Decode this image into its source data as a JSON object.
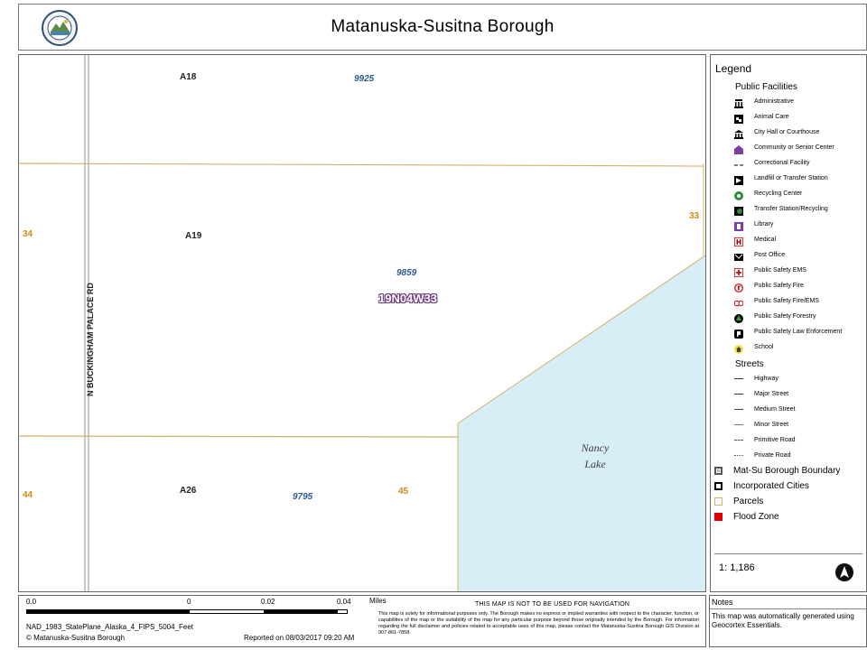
{
  "header": {
    "title": "Matanuska-Susitna Borough",
    "seal_icon": "borough-seal-icon"
  },
  "map": {
    "parcels": {
      "a18": "A18",
      "a19": "A19",
      "a26": "A26"
    },
    "parcel_numbers": {
      "p9925": "9925",
      "p9859": "9859",
      "p9795": "9795"
    },
    "sections": {
      "s34": "34",
      "s33": "33",
      "s44": "44",
      "s45": "45"
    },
    "township": "19N04W33",
    "road_label": "N BUCKINGHAM PALACE RD",
    "lake_label": [
      "Nancy",
      "Lake"
    ],
    "colors": {
      "water": "#d8eef7",
      "parcel_line": "#d2b16c",
      "road": "#b5b5b5",
      "township": "#6a3d7a"
    }
  },
  "legend": {
    "title": "Legend",
    "public_facilities": {
      "heading": "Public Facilities",
      "items": [
        {
          "label": "Administrative",
          "icon": "administrative-icon"
        },
        {
          "label": "Animal Care",
          "icon": "animal-care-icon"
        },
        {
          "label": "City Hall or Courthouse",
          "icon": "courthouse-icon"
        },
        {
          "label": "Community or Senior Center",
          "icon": "community-center-icon"
        },
        {
          "label": "Correctional Facility",
          "icon": "correctional-facility-icon"
        },
        {
          "label": "Landfill or Transfer Station",
          "icon": "landfill-icon"
        },
        {
          "label": "Recycling Center",
          "icon": "recycling-icon"
        },
        {
          "label": "Transfer Station/Recycling",
          "icon": "transfer-recycling-icon"
        },
        {
          "label": "Library",
          "icon": "library-icon"
        },
        {
          "label": "Medical",
          "icon": "medical-icon"
        },
        {
          "label": "Post Office",
          "icon": "post-office-icon"
        },
        {
          "label": "Public Safety EMS",
          "icon": "ems-icon"
        },
        {
          "label": "Public Safety Fire",
          "icon": "fire-icon"
        },
        {
          "label": "Public Safety Fire/EMS",
          "icon": "fire-ems-icon"
        },
        {
          "label": "Public Safety Forestry",
          "icon": "forestry-icon"
        },
        {
          "label": "Public Safety Law Enforcement",
          "icon": "law-enforcement-icon"
        },
        {
          "label": "School",
          "icon": "school-icon"
        }
      ]
    },
    "streets": {
      "heading": "Streets",
      "items": [
        "Highway",
        "Major Street",
        "Medium Street",
        "Minor Street",
        "Primitive Road",
        "Private Road"
      ]
    },
    "boundaries": [
      {
        "label": "Mat-Su Borough Boundary",
        "color": "#555555"
      },
      {
        "label": "Incorporated Cities",
        "color": "#000000"
      },
      {
        "label": "Parcels",
        "color": "#d2b16c"
      },
      {
        "label": "Flood Zone",
        "color": "#e00000"
      }
    ],
    "scale_ratio": "1: 1,186",
    "north_icon": "north-arrow-icon"
  },
  "footer": {
    "scale_ticks": [
      "0.0",
      "0",
      "0.02",
      "0.04"
    ],
    "scale_unit": "Miles",
    "projection": "NAD_1983_StatePlane_Alaska_4_FIPS_5004_Feet",
    "copyright": "© Matanuska-Susitna Borough",
    "reported": "Reported on 08/03/2017 09:20 AM",
    "nav_warning": "THIS MAP IS NOT TO BE USED FOR NAVIGATION",
    "disclaimer": "This map is solely for informational purposes only. The Borough makes no express or implied warranties with respect to the character, function, or capabilities of the map or the suitability of the map for any particular purpose beyond those originally intended by the Borough. For information regarding the full disclaimer and policies related to acceptable uses of this map, please contact the Matanuska-Susitna Borough GIS Division at 907-861-7858."
  },
  "notes": {
    "title": "Notes",
    "text": "This map was automatically generated using Geocortex Essentials."
  }
}
